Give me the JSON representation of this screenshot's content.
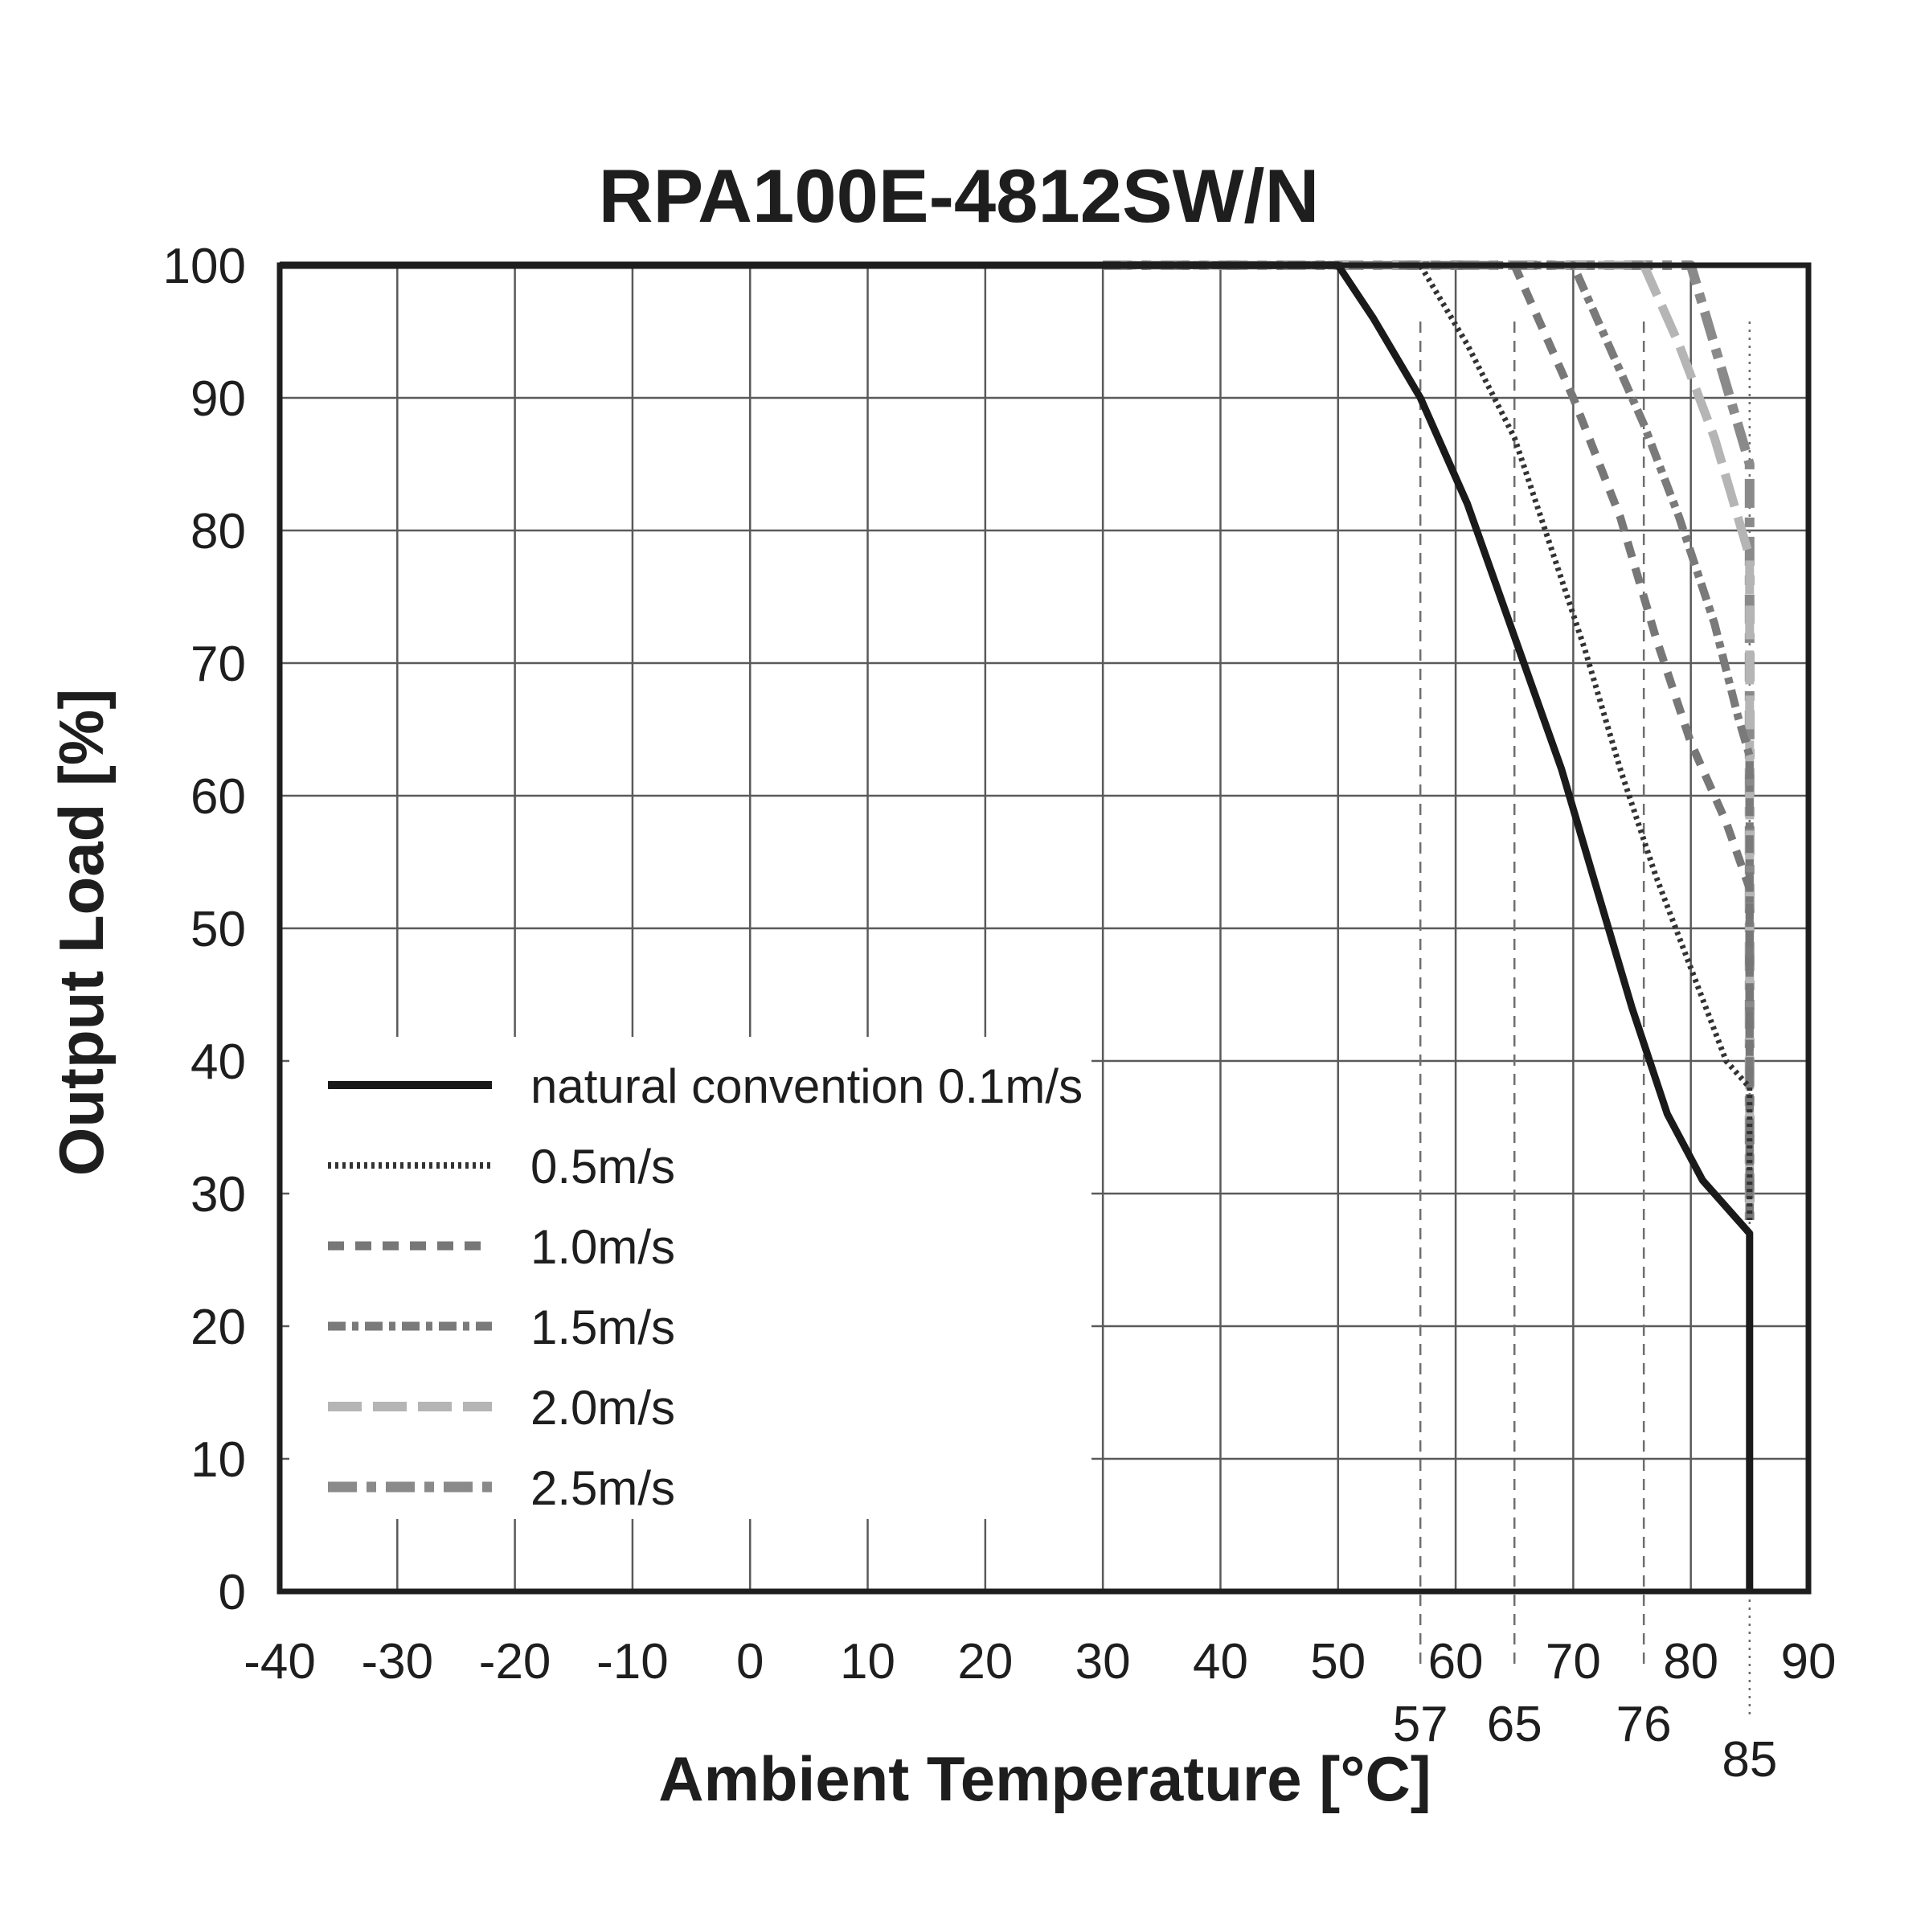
{
  "chart_data": {
    "type": "line",
    "title": "RPA100E-4812SW/N",
    "xlabel": "Ambient Temperature [°C]",
    "ylabel": "Output Load [%]",
    "xlim": [
      -40,
      90
    ],
    "ylim": [
      0,
      100
    ],
    "x_ticks": [
      "-40",
      "-30",
      "-20",
      "-10",
      "0",
      "10",
      "20",
      "30",
      "40",
      "50",
      "60",
      "70",
      "80",
      "90"
    ],
    "y_ticks": [
      "0",
      "10",
      "20",
      "30",
      "40",
      "50",
      "60",
      "70",
      "80",
      "90",
      "100"
    ],
    "extra_x_markers": [
      {
        "value": 57,
        "label": "57"
      },
      {
        "value": 65,
        "label": "65"
      },
      {
        "value": 76,
        "label": "76"
      },
      {
        "value": 85,
        "label": "85"
      }
    ],
    "grid": true,
    "legend_position": "bottom-left",
    "series": [
      {
        "name": "natural convention 0.1m/s",
        "style": "solid",
        "color": "#1a1a1a",
        "points": [
          [
            -40,
            100
          ],
          [
            50,
            100
          ],
          [
            53,
            96
          ],
          [
            57,
            90
          ],
          [
            61,
            82
          ],
          [
            65,
            72
          ],
          [
            69,
            62
          ],
          [
            72,
            53
          ],
          [
            75,
            44
          ],
          [
            78,
            36
          ],
          [
            81,
            31
          ],
          [
            85,
            27
          ],
          [
            85,
            0
          ]
        ]
      },
      {
        "name": "0.5m/s",
        "style": "dotted",
        "color": "#333333",
        "points": [
          [
            30,
            100
          ],
          [
            57,
            100
          ],
          [
            61,
            94
          ],
          [
            65,
            87
          ],
          [
            68,
            79
          ],
          [
            71,
            71
          ],
          [
            74,
            62
          ],
          [
            77,
            54
          ],
          [
            80,
            47
          ],
          [
            83,
            40
          ],
          [
            85,
            38
          ],
          [
            85,
            28
          ]
        ]
      },
      {
        "name": "1.0m/s",
        "style": "dashed",
        "color": "#777777",
        "points": [
          [
            30,
            100
          ],
          [
            65,
            100
          ],
          [
            67,
            96
          ],
          [
            70,
            90
          ],
          [
            74,
            81
          ],
          [
            77,
            72
          ],
          [
            80,
            64
          ],
          [
            83,
            58
          ],
          [
            85,
            53
          ],
          [
            85,
            28
          ]
        ]
      },
      {
        "name": "1.5m/s",
        "style": "dashdot",
        "color": "#7a7a7a",
        "points": [
          [
            30,
            100
          ],
          [
            70,
            100
          ],
          [
            73,
            94
          ],
          [
            76,
            88
          ],
          [
            79,
            81
          ],
          [
            82,
            73
          ],
          [
            84,
            66
          ],
          [
            85,
            63
          ],
          [
            85,
            28
          ]
        ]
      },
      {
        "name": "2.0m/s",
        "style": "longdash",
        "color": "#b5b5b5",
        "points": [
          [
            30,
            100
          ],
          [
            76,
            100
          ],
          [
            79,
            94
          ],
          [
            82,
            87
          ],
          [
            85,
            78
          ],
          [
            85,
            28
          ]
        ]
      },
      {
        "name": "2.5m/s",
        "style": "dashdot-long",
        "color": "#8a8a8a",
        "points": [
          [
            30,
            100
          ],
          [
            80,
            100
          ],
          [
            82,
            94
          ],
          [
            85,
            85
          ],
          [
            85,
            28
          ]
        ]
      }
    ]
  }
}
